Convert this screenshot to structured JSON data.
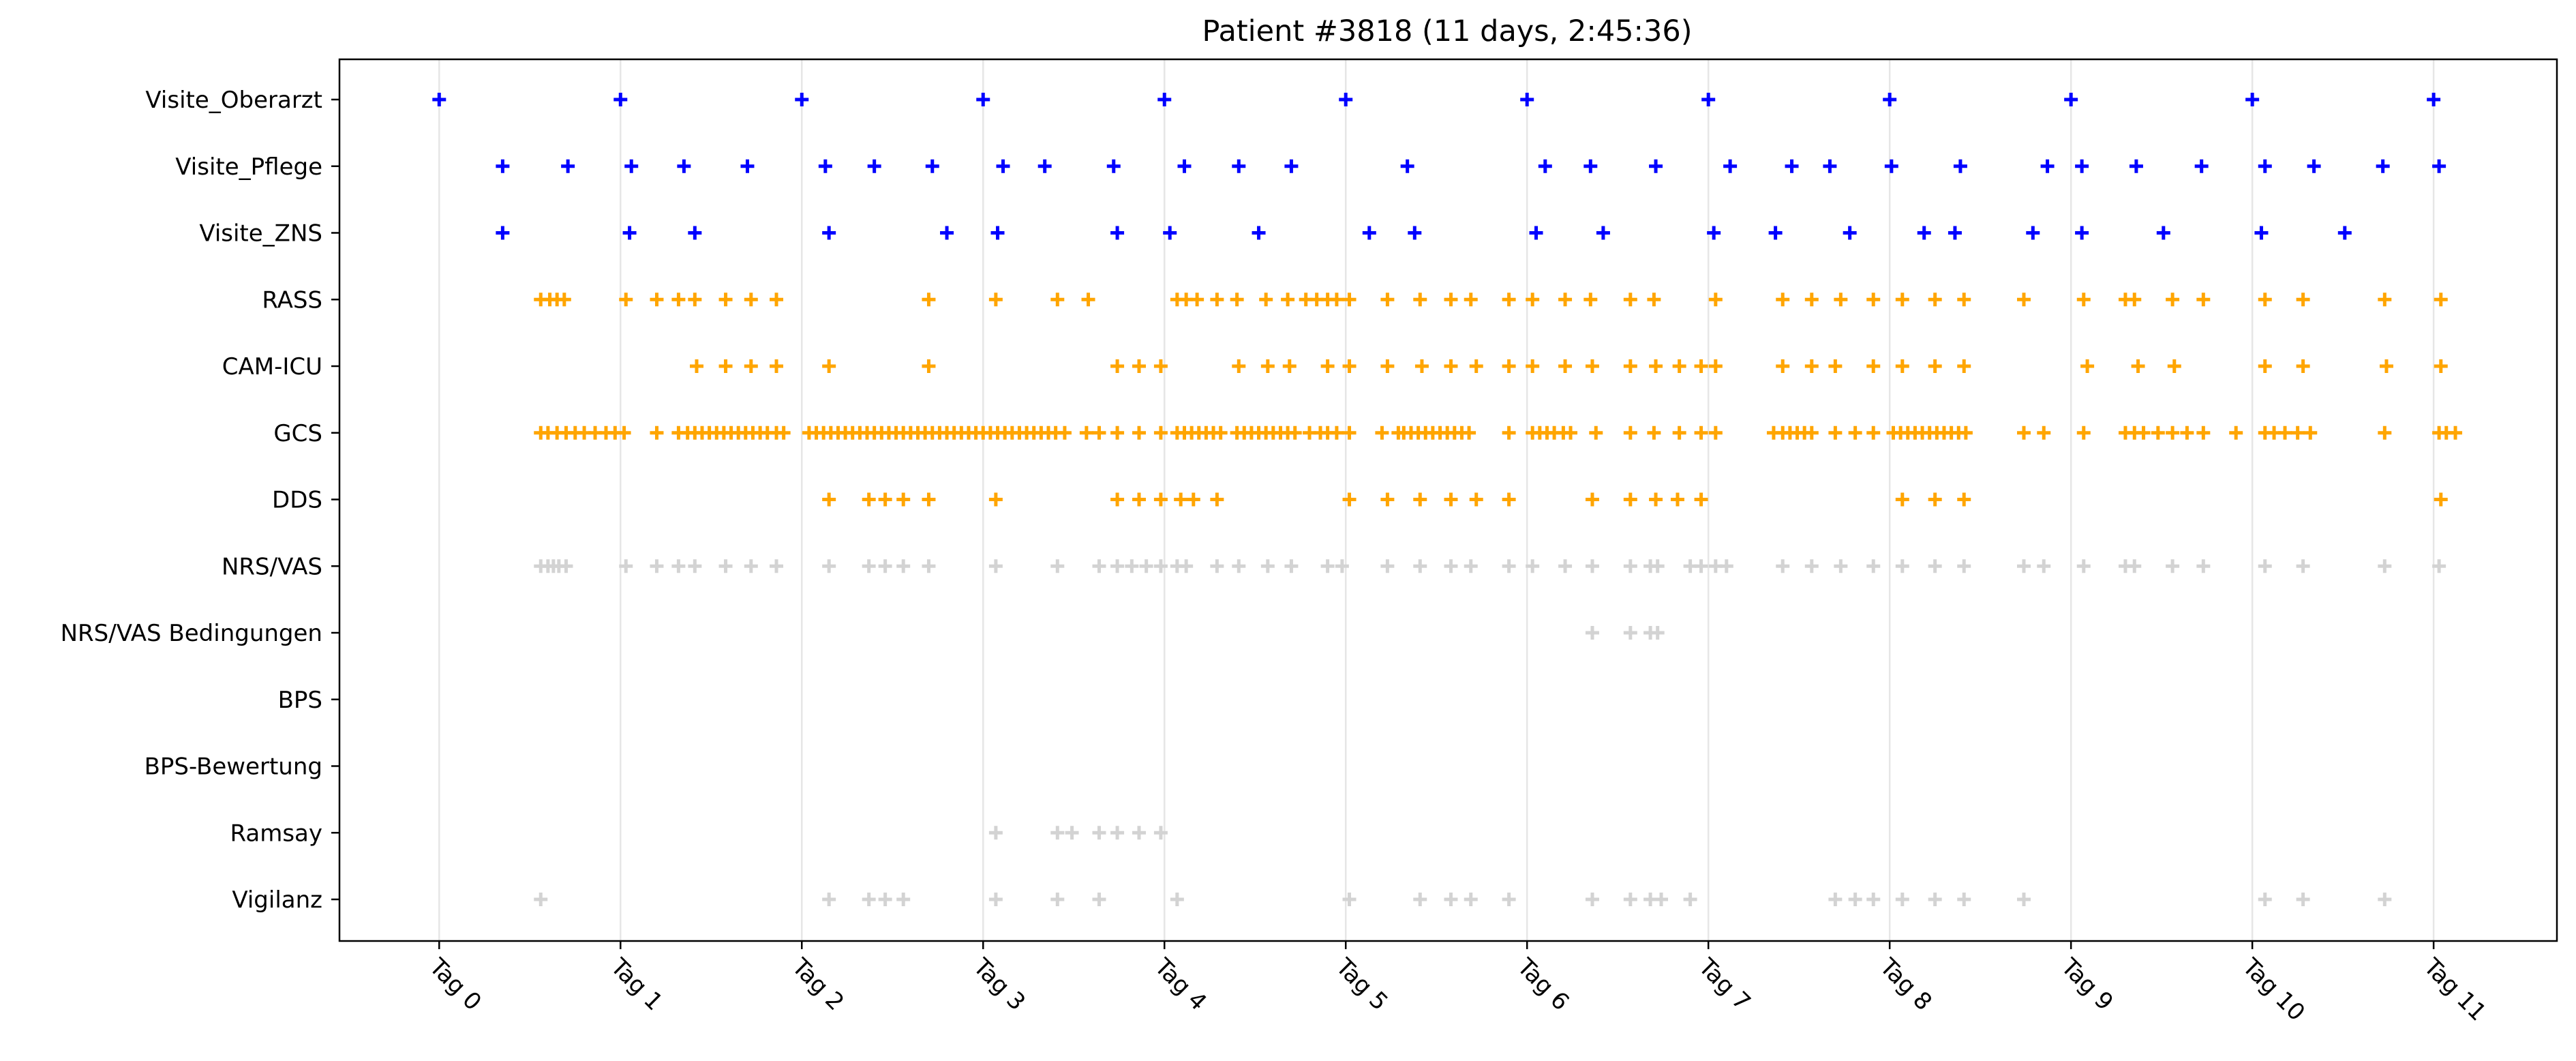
{
  "chart_data": {
    "type": "scatter",
    "title": "Patient #3818 (11 days, 2:45:36)",
    "xlabel": "",
    "ylabel": "",
    "xlim": [
      -0.55,
      11.68
    ],
    "grid": "vertical gridlines at each day tick",
    "legend": "none",
    "marker": "plus",
    "x_ticks": [
      {
        "value": 0,
        "label": "Tag 0"
      },
      {
        "value": 1,
        "label": "Tag 1"
      },
      {
        "value": 2,
        "label": "Tag 2"
      },
      {
        "value": 3,
        "label": "Tag 3"
      },
      {
        "value": 4,
        "label": "Tag 4"
      },
      {
        "value": 5,
        "label": "Tag 5"
      },
      {
        "value": 6,
        "label": "Tag 6"
      },
      {
        "value": 7,
        "label": "Tag 7"
      },
      {
        "value": 8,
        "label": "Tag 8"
      },
      {
        "value": 9,
        "label": "Tag 9"
      },
      {
        "value": 10,
        "label": "Tag 10"
      },
      {
        "value": 11,
        "label": "Tag 11"
      }
    ],
    "categories": [
      "Visite_Oberarzt",
      "Visite_Pflege",
      "Visite_ZNS",
      "RASS",
      "CAM-ICU",
      "GCS",
      "DDS",
      "NRS/VAS",
      "NRS/VAS Bedingungen",
      "BPS",
      "BPS-Bewertung",
      "Ramsay",
      "Vigilanz"
    ],
    "series": [
      {
        "category": "Visite_Oberarzt",
        "color": "#0000ff",
        "x": [
          0.0,
          1.0,
          2.0,
          3.0,
          4.0,
          5.0,
          6.0,
          7.0,
          8.0,
          9.0,
          10.0,
          11.0
        ]
      },
      {
        "category": "Visite_Pflege",
        "color": "#0000ff",
        "x": [
          0.35,
          0.71,
          1.06,
          1.35,
          1.7,
          2.13,
          2.4,
          2.72,
          3.11,
          3.34,
          3.72,
          4.11,
          4.41,
          4.7,
          5.34,
          6.1,
          6.35,
          6.71,
          7.12,
          7.46,
          7.67,
          8.01,
          8.39,
          8.87,
          9.06,
          9.36,
          9.72,
          10.07,
          10.34,
          10.72,
          11.03
        ]
      },
      {
        "category": "Visite_ZNS",
        "color": "#0000ff",
        "x": [
          0.35,
          1.05,
          1.41,
          2.15,
          2.8,
          3.08,
          3.74,
          4.03,
          4.52,
          5.13,
          5.38,
          6.05,
          6.42,
          7.03,
          7.37,
          7.78,
          8.19,
          8.36,
          8.79,
          9.06,
          9.51,
          10.05,
          10.51
        ]
      },
      {
        "category": "RASS",
        "color": "#ffa500",
        "x": [
          0.56,
          0.61,
          0.65,
          0.69,
          1.03,
          1.2,
          1.32,
          1.41,
          1.58,
          1.72,
          1.86,
          2.7,
          3.07,
          3.41,
          3.58,
          4.07,
          4.12,
          4.18,
          4.29,
          4.4,
          4.56,
          4.68,
          4.78,
          4.84,
          4.9,
          4.95,
          5.02,
          5.23,
          5.41,
          5.58,
          5.69,
          5.9,
          6.03,
          6.21,
          6.35,
          6.57,
          6.7,
          7.04,
          7.41,
          7.57,
          7.73,
          7.91,
          8.07,
          8.25,
          8.41,
          8.74,
          9.07,
          9.3,
          9.35,
          9.56,
          9.73,
          10.07,
          10.28,
          10.73,
          11.04
        ]
      },
      {
        "category": "CAM-ICU",
        "color": "#ffa500",
        "x": [
          1.42,
          1.58,
          1.72,
          1.86,
          2.15,
          2.7,
          3.74,
          3.86,
          3.98,
          4.41,
          4.57,
          4.69,
          4.9,
          5.02,
          5.23,
          5.42,
          5.58,
          5.72,
          5.9,
          6.03,
          6.21,
          6.36,
          6.57,
          6.71,
          6.84,
          6.96,
          7.04,
          7.41,
          7.57,
          7.7,
          7.91,
          8.07,
          8.25,
          8.41,
          9.09,
          9.37,
          9.57,
          10.07,
          10.28,
          10.74,
          11.04
        ]
      },
      {
        "category": "GCS",
        "color": "#ffa500",
        "x": [
          0.56,
          0.6,
          0.65,
          0.7,
          0.75,
          0.8,
          0.86,
          0.92,
          0.97,
          1.02,
          1.2,
          1.32,
          1.37,
          1.41,
          1.45,
          1.49,
          1.53,
          1.57,
          1.61,
          1.65,
          1.69,
          1.73,
          1.77,
          1.81,
          1.86,
          1.9,
          2.04,
          2.08,
          2.12,
          2.16,
          2.2,
          2.24,
          2.28,
          2.32,
          2.36,
          2.4,
          2.44,
          2.48,
          2.52,
          2.56,
          2.6,
          2.64,
          2.68,
          2.72,
          2.76,
          2.8,
          2.84,
          2.88,
          2.92,
          2.96,
          3.0,
          3.04,
          3.08,
          3.12,
          3.16,
          3.2,
          3.24,
          3.28,
          3.32,
          3.36,
          3.4,
          3.45,
          3.57,
          3.64,
          3.74,
          3.86,
          3.98,
          4.07,
          4.11,
          4.15,
          4.19,
          4.23,
          4.27,
          4.31,
          4.4,
          4.44,
          4.48,
          4.52,
          4.56,
          4.6,
          4.64,
          4.68,
          4.72,
          4.8,
          4.86,
          4.9,
          4.95,
          5.02,
          5.2,
          5.29,
          5.32,
          5.36,
          5.4,
          5.44,
          5.48,
          5.52,
          5.56,
          5.6,
          5.64,
          5.68,
          5.9,
          6.03,
          6.07,
          6.11,
          6.15,
          6.2,
          6.24,
          6.38,
          6.57,
          6.7,
          6.84,
          6.96,
          7.04,
          7.36,
          7.41,
          7.45,
          7.49,
          7.53,
          7.57,
          7.7,
          7.81,
          7.91,
          8.02,
          8.06,
          8.1,
          8.14,
          8.18,
          8.22,
          8.26,
          8.3,
          8.34,
          8.38,
          8.42,
          8.74,
          8.85,
          9.07,
          9.3,
          9.35,
          9.4,
          9.48,
          9.56,
          9.64,
          9.73,
          9.91,
          10.07,
          10.12,
          10.18,
          10.25,
          10.32,
          10.73,
          11.03,
          11.07,
          11.12
        ]
      },
      {
        "category": "DDS",
        "color": "#ffa500",
        "x": [
          2.15,
          2.37,
          2.46,
          2.56,
          2.7,
          3.07,
          3.74,
          3.86,
          3.98,
          4.09,
          4.16,
          4.29,
          5.02,
          5.23,
          5.41,
          5.58,
          5.72,
          5.9,
          6.36,
          6.57,
          6.71,
          6.83,
          6.96,
          8.07,
          8.25,
          8.41,
          11.04
        ]
      },
      {
        "category": "NRS/VAS",
        "color": "#d3d3d3",
        "x": [
          0.56,
          0.6,
          0.63,
          0.66,
          0.7,
          1.03,
          1.2,
          1.32,
          1.41,
          1.58,
          1.72,
          1.86,
          2.15,
          2.37,
          2.46,
          2.56,
          2.7,
          3.07,
          3.41,
          3.64,
          3.74,
          3.82,
          3.9,
          3.98,
          4.07,
          4.12,
          4.29,
          4.41,
          4.57,
          4.7,
          4.9,
          4.98,
          5.23,
          5.41,
          5.58,
          5.69,
          5.9,
          6.03,
          6.21,
          6.36,
          6.57,
          6.68,
          6.72,
          6.9,
          6.96,
          7.04,
          7.1,
          7.41,
          7.57,
          7.73,
          7.91,
          8.07,
          8.25,
          8.41,
          8.74,
          8.85,
          9.07,
          9.3,
          9.35,
          9.56,
          9.73,
          10.07,
          10.28,
          10.73,
          11.03
        ]
      },
      {
        "category": "NRS/VAS Bedingungen",
        "color": "#d3d3d3",
        "x": [
          6.36,
          6.57,
          6.68,
          6.72
        ]
      },
      {
        "category": "BPS",
        "color": "#d3d3d3",
        "x": []
      },
      {
        "category": "BPS-Bewertung",
        "color": "#d3d3d3",
        "x": []
      },
      {
        "category": "Ramsay",
        "color": "#d3d3d3",
        "x": [
          3.07,
          3.41,
          3.49,
          3.64,
          3.74,
          3.86,
          3.98
        ]
      },
      {
        "category": "Vigilanz",
        "color": "#d3d3d3",
        "x": [
          0.56,
          2.15,
          2.37,
          2.46,
          2.56,
          3.07,
          3.41,
          3.64,
          4.07,
          5.02,
          5.41,
          5.58,
          5.69,
          5.9,
          6.36,
          6.57,
          6.68,
          6.74,
          6.9,
          7.7,
          7.81,
          7.91,
          8.07,
          8.25,
          8.41,
          8.74,
          10.07,
          10.28,
          10.73
        ]
      }
    ]
  }
}
